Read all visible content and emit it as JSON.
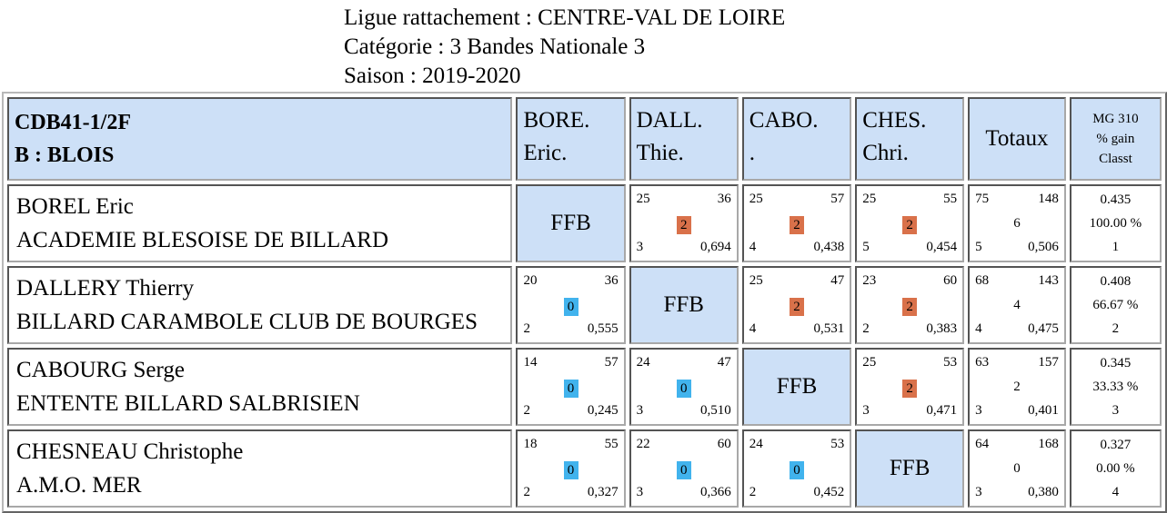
{
  "header": {
    "ligue": "Ligue rattachement : CENTRE-VAL DE LOIRE",
    "categorie": "Catégorie :  3 Bandes Nationale 3",
    "saison": "Saison : 2019-2020"
  },
  "table": {
    "corner_line1": "CDB41-1/2F",
    "corner_line2": "B : BLOIS",
    "columns": [
      {
        "line1": "BORE.",
        "line2": "Eric."
      },
      {
        "line1": "DALL.",
        "line2": "Thie."
      },
      {
        "line1": "CABO.",
        "line2": "."
      },
      {
        "line1": "CHES.",
        "line2": "Chri."
      }
    ],
    "totaux_label": "Totaux",
    "mg_label": "MG 310",
    "gain_label": "% gain",
    "classt_label": "Classt",
    "self_label": "FFB",
    "rows": [
      {
        "name": "BOREL Eric",
        "club": "ACADEMIE BLESOISE DE BILLARD",
        "cells": [
          null,
          {
            "points": "25",
            "reprises": "36",
            "pts_match": "2",
            "result": "win",
            "series": "3",
            "avg": "0,694"
          },
          {
            "points": "25",
            "reprises": "57",
            "pts_match": "2",
            "result": "win",
            "series": "4",
            "avg": "0,438"
          },
          {
            "points": "25",
            "reprises": "55",
            "pts_match": "2",
            "result": "win",
            "series": "5",
            "avg": "0,454"
          }
        ],
        "total": {
          "points": "75",
          "reprises": "148",
          "pts_match": "6",
          "series": "5",
          "avg": "0,506"
        },
        "mg": "0.435",
        "gain": "100.00 %",
        "classt": "1"
      },
      {
        "name": "DALLERY Thierry",
        "club": "BILLARD CARAMBOLE CLUB DE BOURGES",
        "cells": [
          {
            "points": "20",
            "reprises": "36",
            "pts_match": "0",
            "result": "loss",
            "series": "2",
            "avg": "0,555"
          },
          null,
          {
            "points": "25",
            "reprises": "47",
            "pts_match": "2",
            "result": "win",
            "series": "4",
            "avg": "0,531"
          },
          {
            "points": "23",
            "reprises": "60",
            "pts_match": "2",
            "result": "win",
            "series": "2",
            "avg": "0,383"
          }
        ],
        "total": {
          "points": "68",
          "reprises": "143",
          "pts_match": "4",
          "series": "4",
          "avg": "0,475"
        },
        "mg": "0.408",
        "gain": "66.67 %",
        "classt": "2"
      },
      {
        "name": "CABOURG Serge",
        "club": "ENTENTE BILLARD SALBRISIEN",
        "cells": [
          {
            "points": "14",
            "reprises": "57",
            "pts_match": "0",
            "result": "loss",
            "series": "2",
            "avg": "0,245"
          },
          {
            "points": "24",
            "reprises": "47",
            "pts_match": "0",
            "result": "loss",
            "series": "3",
            "avg": "0,510"
          },
          null,
          {
            "points": "25",
            "reprises": "53",
            "pts_match": "2",
            "result": "win",
            "series": "3",
            "avg": "0,471"
          }
        ],
        "total": {
          "points": "63",
          "reprises": "157",
          "pts_match": "2",
          "series": "3",
          "avg": "0,401"
        },
        "mg": "0.345",
        "gain": "33.33 %",
        "classt": "3"
      },
      {
        "name": "CHESNEAU Christophe",
        "club": "A.M.O. MER",
        "cells": [
          {
            "points": "18",
            "reprises": "55",
            "pts_match": "0",
            "result": "loss",
            "series": "2",
            "avg": "0,327"
          },
          {
            "points": "22",
            "reprises": "60",
            "pts_match": "0",
            "result": "loss",
            "series": "3",
            "avg": "0,366"
          },
          {
            "points": "24",
            "reprises": "53",
            "pts_match": "0",
            "result": "loss",
            "series": "2",
            "avg": "0,452"
          },
          null
        ],
        "total": {
          "points": "64",
          "reprises": "168",
          "pts_match": "0",
          "series": "3",
          "avg": "0,380"
        },
        "mg": "0.327",
        "gain": "0.00 %",
        "classt": "4"
      }
    ]
  },
  "colors": {
    "header_bg": "#cde0f7",
    "win_badge": "#d9714a",
    "loss_badge": "#41b3ed"
  }
}
